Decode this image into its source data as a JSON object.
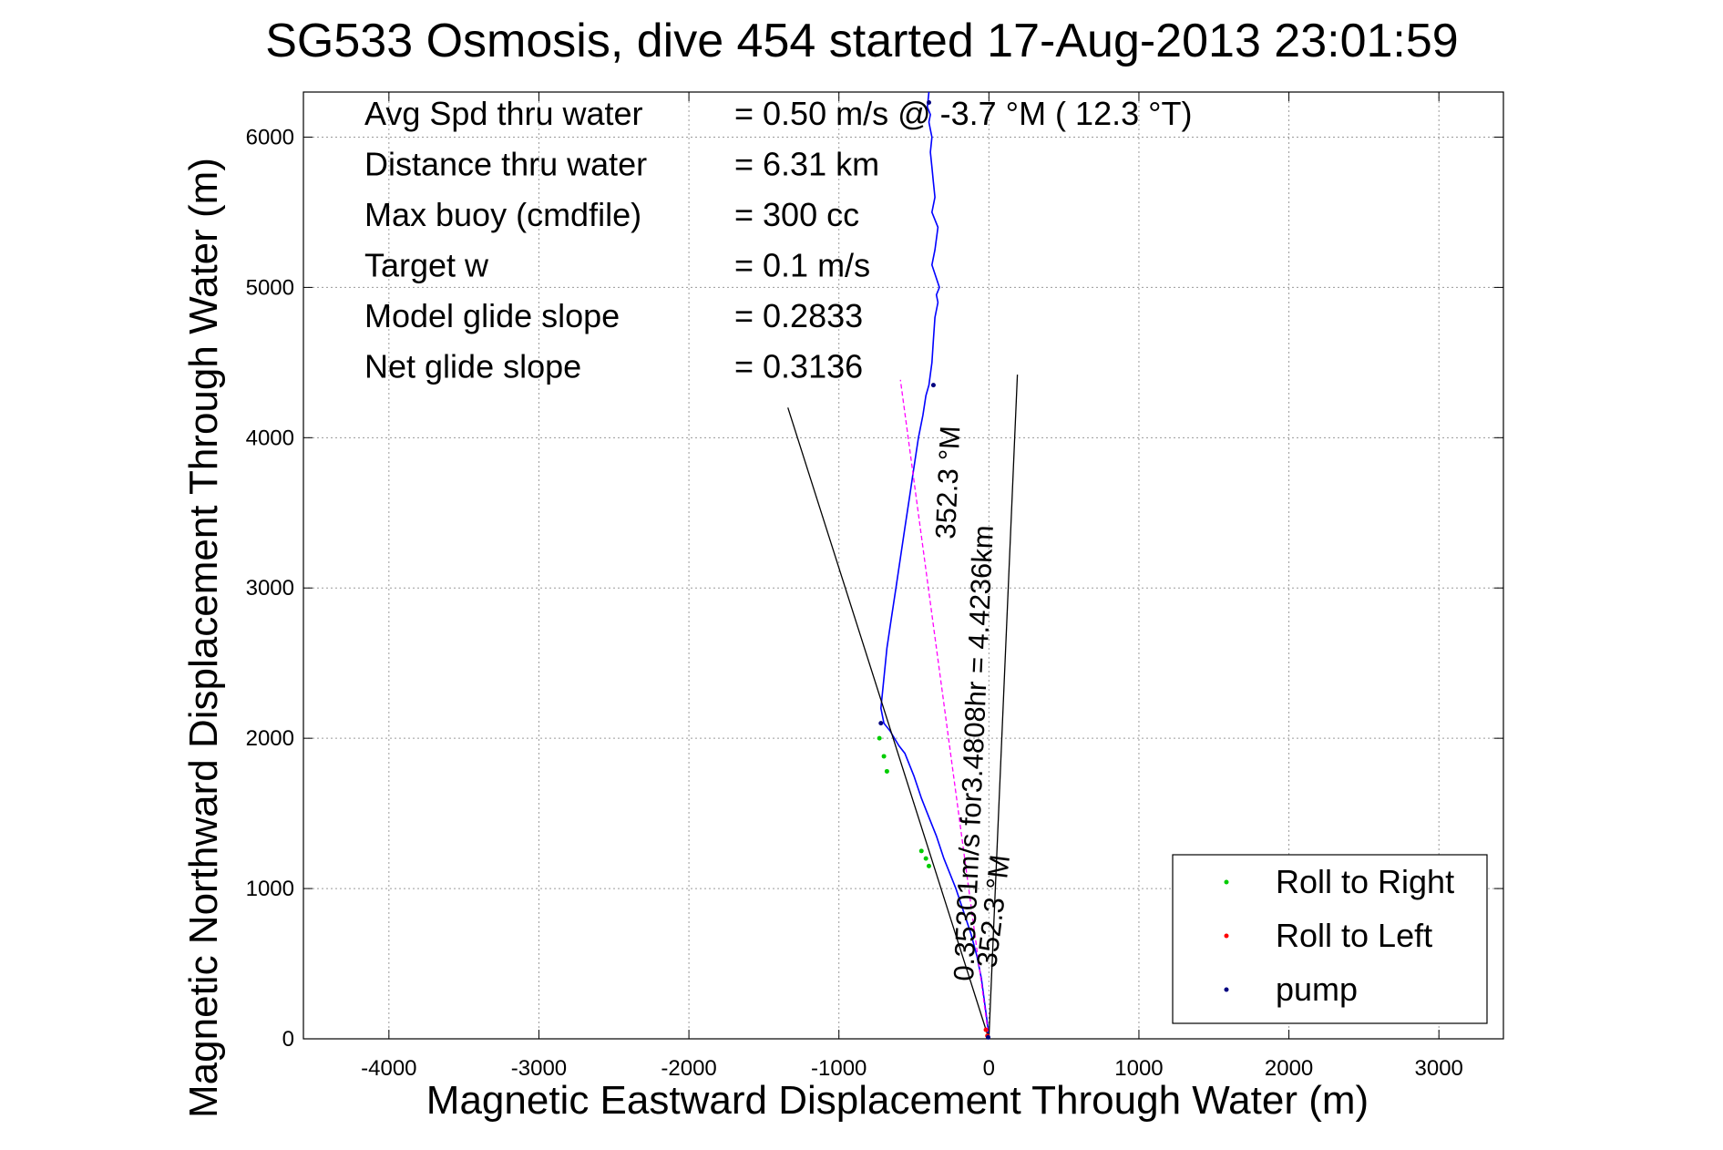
{
  "chart_data": {
    "type": "line",
    "title": "SG533 Osmosis, dive 454 started 17-Aug-2013 23:01:59",
    "xlabel": "Magnetic Eastward Displacement Through Water (m)",
    "ylabel": "Magnetic Northward Displacement Through Water (m)",
    "xlim": [
      -4570,
      3430
    ],
    "ylim": [
      0,
      6300
    ],
    "xticks": [
      -4000,
      -3000,
      -2000,
      -1000,
      0,
      1000,
      2000,
      3000
    ],
    "yticks": [
      0,
      1000,
      2000,
      3000,
      4000,
      5000,
      6000
    ],
    "xtick_labels": [
      "-4000",
      "-3000",
      "-2000",
      "-1000",
      "0",
      "1000",
      "2000",
      "3000"
    ],
    "ytick_labels": [
      "0",
      "1000",
      "2000",
      "3000",
      "4000",
      "5000",
      "6000"
    ],
    "grid": true,
    "legend_position": "bottom-right",
    "legend": [
      {
        "label": "Roll to Right",
        "color": "#00cc00"
      },
      {
        "label": "Roll to Left",
        "color": "#ff0000"
      },
      {
        "label": "pump",
        "color": "#000080"
      }
    ],
    "stats": [
      {
        "label": "Avg Spd thru water",
        "value": "=  0.50 m/s @  -3.7 °M ( 12.3 °T)"
      },
      {
        "label": "Distance thru water",
        "value": "=  6.31 km"
      },
      {
        "label": "Max buoy (cmdfile)",
        "value": "= 300 cc"
      },
      {
        "label": "Target w",
        "value": "= 0.1 m/s"
      },
      {
        "label": "Model glide slope",
        "value": "= 0.2833"
      },
      {
        "label": "Net glide slope",
        "value": "= 0.3136"
      }
    ],
    "annotations": [
      {
        "line1": "0.35301m/s for3.4808hr = 4.4236km",
        "line2": "352.3 °M",
        "rotation_deg": -87.5
      },
      {
        "line1": "0.35301m/s",
        "line2": "352.3 °M",
        "rotation_deg": -83
      }
    ],
    "series": [
      {
        "name": "track",
        "color": "#0000ff",
        "x": [
          0,
          -10,
          -30,
          -50,
          -80,
          -120,
          -170,
          -220,
          -260,
          -300,
          -350,
          -410,
          -450,
          -500,
          -560,
          -600,
          -660,
          -700,
          -720,
          -700,
          -680,
          -650,
          -620,
          -590,
          -560,
          -530,
          -500,
          -470,
          -440,
          -420,
          -400,
          -380,
          -370,
          -360,
          -340,
          -350,
          -330,
          -380,
          -360,
          -340,
          -380,
          -360,
          -370,
          -380,
          -390,
          -380,
          -390,
          -400,
          -390,
          -410,
          -400
        ],
        "y": [
          0,
          100,
          250,
          400,
          550,
          700,
          850,
          1000,
          1100,
          1200,
          1350,
          1500,
          1600,
          1750,
          1900,
          1950,
          2050,
          2100,
          2200,
          2400,
          2600,
          2800,
          3000,
          3200,
          3400,
          3600,
          3800,
          4000,
          4150,
          4280,
          4350,
          4500,
          4650,
          4800,
          4900,
          4950,
          5000,
          5150,
          5250,
          5400,
          5500,
          5600,
          5700,
          5800,
          5900,
          6000,
          6050,
          6100,
          6150,
          6200,
          6300
        ]
      },
      {
        "name": "net heading",
        "color": "#ff00ff",
        "x": [
          0,
          -590
        ],
        "y": [
          0,
          4385
        ]
      },
      {
        "name": "envelope left",
        "color": "#000000",
        "x": [
          0,
          -1340
        ],
        "y": [
          0,
          4200
        ]
      },
      {
        "name": "envelope right",
        "color": "#000000",
        "x": [
          0,
          190
        ],
        "y": [
          0,
          4420
        ]
      }
    ],
    "markers": {
      "roll_to_right": {
        "color": "#00cc00",
        "x": [
          -730,
          -700,
          -680,
          -450,
          -420,
          -400
        ],
        "y": [
          2000,
          1880,
          1780,
          1250,
          1200,
          1150
        ]
      },
      "roll_to_left": {
        "color": "#ff0000",
        "x": [
          -10,
          -20
        ],
        "y": [
          20,
          60
        ]
      },
      "pump": {
        "color": "#000080",
        "x": [
          -720,
          -370,
          -400,
          -5
        ],
        "y": [
          2100,
          4350,
          6230,
          10
        ]
      }
    }
  }
}
